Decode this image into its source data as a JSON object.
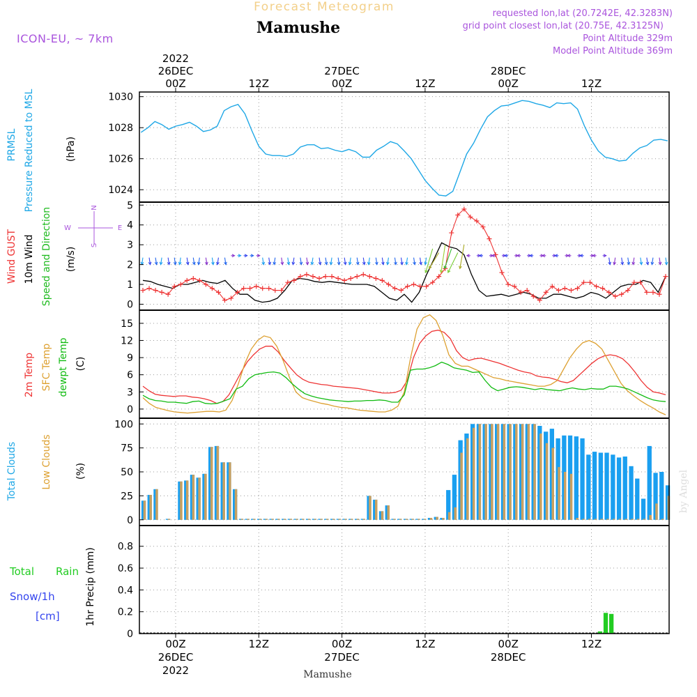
{
  "header": {
    "forecast_label": "Forecast Meteogram",
    "location": "Mamushe",
    "model": "ICON-EU, ~ 7km",
    "requested": "requested lon,lat (20.7242E, 42.3283N)",
    "grid_point": "grid point closest lon,lat (20.75E, 42.3125N)",
    "point_alt": "Point Altitude 329m",
    "model_alt": "Model Point Altitude 369m",
    "watermark": "by Angel",
    "footer_location": "Mamushe"
  },
  "colors": {
    "pressure": "#1ea7e6",
    "gust": "#ee3333",
    "wind": "#000000",
    "dir_green": "#20bb20",
    "t2m": "#ee3333",
    "sfc": "#dda030",
    "dewpt": "#11bb11",
    "total_cloud": "#1a9ff0",
    "low_cloud": "#c8a060",
    "rain": "#22cc22",
    "snow": "#3344ee",
    "purple": "#aa55dd",
    "gray_label": "#555555"
  },
  "time_axis": {
    "top_labels": [
      {
        "x": 0,
        "lines": [
          "2022",
          "26DEC",
          "00Z"
        ]
      },
      {
        "x": 12,
        "lines": [
          "12Z"
        ]
      },
      {
        "x": 24,
        "lines": [
          "27DEC",
          "00Z"
        ]
      },
      {
        "x": 36,
        "lines": [
          "12Z"
        ]
      },
      {
        "x": 48,
        "lines": [
          "28DEC",
          "00Z"
        ]
      },
      {
        "x": 60,
        "lines": [
          "12Z"
        ]
      }
    ],
    "bottom_labels": [
      {
        "x": 0,
        "lines": [
          "00Z",
          "26DEC",
          "2022"
        ]
      },
      {
        "x": 12,
        "lines": [
          "12Z"
        ]
      },
      {
        "x": 24,
        "lines": [
          "00Z",
          "27DEC"
        ]
      },
      {
        "x": 36,
        "lines": [
          "12Z"
        ]
      },
      {
        "x": 48,
        "lines": [
          "00Z",
          "28DEC"
        ]
      },
      {
        "x": 60,
        "lines": [
          "12Z"
        ]
      }
    ]
  },
  "panels": {
    "pressure": {
      "labels": [
        "PRMSL",
        "Pressure Reduced to MSL"
      ],
      "unit": "(hPa)"
    },
    "wind": {
      "labels": [
        "Wind GUST",
        "10m Wind",
        "Speed and Direction"
      ],
      "unit": "(m/s)",
      "compass": [
        "N",
        "W",
        "E",
        "S"
      ]
    },
    "temp": {
      "labels": [
        "2m Temp",
        "SFC Temp",
        "dewpt Temp"
      ],
      "unit": "(C)"
    },
    "cloud": {
      "labels": [
        "Total Clouds",
        "Low Clouds"
      ],
      "unit": "(%)"
    },
    "precip": {
      "labels": [
        "Total",
        "Rain",
        "Snow/1h",
        "[cm]"
      ],
      "axis_label": "1hr Precip (mm)"
    }
  },
  "chart_data": [
    {
      "type": "line",
      "name": "pressure",
      "ylim": [
        1023.2,
        1030.3
      ],
      "yticks": [
        1024,
        1026,
        1028,
        1030
      ],
      "x": [
        -5,
        -4,
        -3,
        -2,
        -1,
        0,
        1,
        2,
        3,
        4,
        5,
        6,
        7,
        8,
        9,
        10,
        11,
        12,
        13,
        14,
        15,
        16,
        17,
        18,
        19,
        20,
        21,
        22,
        23,
        24,
        25,
        26,
        27,
        28,
        29,
        30,
        31,
        32,
        33,
        34,
        35,
        36,
        37,
        38,
        39,
        40,
        41,
        42,
        43,
        44,
        45,
        46,
        47,
        48,
        49,
        50,
        51,
        52,
        53,
        54,
        55,
        56,
        57,
        58,
        59,
        60,
        61,
        62,
        63,
        64,
        65,
        66,
        67,
        68,
        69,
        70,
        71
      ],
      "series": [
        {
          "values": [
            1027.7,
            1028.0,
            1028.4,
            1028.2,
            1027.9,
            1028.1,
            1028.2,
            1028.35,
            1028.1,
            1027.75,
            1027.85,
            1028.1,
            1029.1,
            1029.35,
            1029.5,
            1028.9,
            1027.8,
            1026.8,
            1026.3,
            1026.2,
            1026.2,
            1026.15,
            1026.3,
            1026.75,
            1026.9,
            1026.9,
            1026.65,
            1026.7,
            1026.55,
            1026.45,
            1026.6,
            1026.45,
            1026.1,
            1026.1,
            1026.55,
            1026.8,
            1027.1,
            1026.95,
            1026.5,
            1026.0,
            1025.3,
            1024.6,
            1024.1,
            1023.65,
            1023.6,
            1023.9,
            1025.1,
            1026.3,
            1027.0,
            1027.9,
            1028.7,
            1029.1,
            1029.4,
            1029.45,
            1029.6,
            1029.75,
            1029.7,
            1029.55,
            1029.45,
            1029.3,
            1029.6,
            1029.55,
            1029.6,
            1029.2,
            1028.1,
            1027.2,
            1026.5,
            1026.1,
            1026.0,
            1025.85,
            1025.9,
            1026.35,
            1026.7,
            1026.85,
            1027.2,
            1027.25,
            1027.15
          ]
        }
      ]
    },
    {
      "type": "line",
      "name": "wind",
      "ylim": [
        -0.3,
        5.15
      ],
      "yticks": [
        0,
        1,
        2,
        3,
        4,
        5
      ],
      "series": [
        {
          "name": "Wind GUST",
          "values": [
            0.7,
            0.8,
            0.7,
            0.6,
            0.5,
            0.9,
            1.0,
            1.2,
            1.3,
            1.2,
            1.0,
            0.8,
            0.6,
            0.2,
            0.3,
            0.6,
            0.8,
            0.8,
            0.9,
            0.8,
            0.8,
            0.7,
            0.7,
            1.1,
            1.2,
            1.4,
            1.5,
            1.4,
            1.3,
            1.4,
            1.4,
            1.3,
            1.2,
            1.3,
            1.4,
            1.5,
            1.4,
            1.3,
            1.2,
            1.0,
            0.8,
            0.7,
            0.9,
            1.0,
            0.9,
            0.9,
            1.1,
            1.4,
            1.8,
            3.6,
            4.5,
            4.8,
            4.4,
            4.2,
            3.9,
            3.3,
            2.5,
            1.6,
            1.0,
            0.9,
            0.6,
            0.7,
            0.4,
            0.2,
            0.6,
            0.9,
            0.7,
            0.8,
            0.7,
            0.8,
            1.1,
            1.1,
            0.9,
            0.8,
            0.6,
            0.4,
            0.5,
            0.7,
            1.1,
            1.1,
            0.6,
            0.6,
            0.5,
            1.4
          ]
        },
        {
          "name": "10m Wind",
          "values": [
            1.2,
            1.15,
            1.0,
            0.9,
            0.8,
            1.0,
            1.0,
            1.1,
            1.2,
            1.1,
            1.05,
            1.2,
            0.8,
            0.5,
            0.5,
            0.2,
            0.1,
            0.15,
            0.3,
            0.7,
            1.2,
            1.3,
            1.25,
            1.15,
            1.1,
            1.15,
            1.1,
            1.05,
            1.0,
            1.0,
            1.0,
            0.9,
            0.6,
            0.3,
            0.2,
            0.5,
            0.1,
            0.6,
            1.5,
            2.3,
            3.1,
            2.9,
            2.8,
            2.5,
            1.5,
            0.7,
            0.4,
            0.45,
            0.5,
            0.4,
            0.5,
            0.6,
            0.5,
            0.3,
            0.3,
            0.5,
            0.5,
            0.4,
            0.3,
            0.4,
            0.6,
            0.5,
            0.3,
            0.6,
            0.9,
            1.0,
            1.0,
            1.2,
            1.1,
            0.6,
            1.4
          ]
        }
      ]
    },
    {
      "type": "line",
      "name": "temperature",
      "ylim": [
        -1.6,
        17.3
      ],
      "yticks": [
        0,
        3,
        6,
        9,
        12,
        15
      ],
      "series": [
        {
          "name": "2m Temp",
          "values": [
            4.0,
            3.2,
            2.6,
            2.4,
            2.3,
            2.2,
            2.3,
            2.3,
            2.1,
            2.0,
            1.8,
            1.5,
            1.0,
            1.3,
            2.5,
            4.5,
            6.5,
            8.3,
            9.5,
            10.5,
            11.0,
            11.0,
            10.0,
            8.5,
            7.2,
            6.0,
            5.2,
            4.7,
            4.5,
            4.3,
            4.2,
            4.0,
            3.9,
            3.8,
            3.7,
            3.6,
            3.4,
            3.2,
            3.0,
            2.8,
            2.8,
            2.9,
            3.3,
            5.0,
            9.0,
            11.5,
            12.8,
            13.6,
            13.8,
            13.4,
            12.3,
            10.2,
            9.0,
            8.5,
            8.8,
            8.9,
            8.6,
            8.3,
            8.0,
            7.6,
            7.2,
            6.8,
            6.5,
            6.3,
            5.8,
            5.6,
            5.5,
            5.2,
            4.8,
            4.6,
            5.0,
            6.0,
            7.0,
            8.0,
            8.8,
            9.3,
            9.5,
            9.3,
            8.8,
            7.8,
            6.5,
            5.0,
            3.8,
            3.0,
            2.8,
            2.5
          ]
        },
        {
          "name": "SFC Temp",
          "values": [
            2.0,
            1.0,
            0.3,
            0.0,
            -0.3,
            -0.5,
            -0.6,
            -0.7,
            -0.6,
            -0.5,
            -0.4,
            -0.4,
            -0.5,
            -0.2,
            1.5,
            4.5,
            8.0,
            10.5,
            12.0,
            12.8,
            12.5,
            11.0,
            8.5,
            5.5,
            3.0,
            2.0,
            1.6,
            1.3,
            1.0,
            0.8,
            0.5,
            0.3,
            0.2,
            0.0,
            -0.2,
            -0.3,
            -0.4,
            -0.5,
            -0.5,
            -0.2,
            0.5,
            3.0,
            9.0,
            14.0,
            16.0,
            16.5,
            15.5,
            13.0,
            9.5,
            8.0,
            7.5,
            7.5,
            7.0,
            6.5,
            6.0,
            5.5,
            5.3,
            5.0,
            4.8,
            4.6,
            4.4,
            4.2,
            4.0,
            4.0,
            4.3,
            5.0,
            7.0,
            9.0,
            10.5,
            11.6,
            12.0,
            11.5,
            10.5,
            8.5,
            6.5,
            4.5,
            3.2,
            2.3,
            1.5,
            0.8,
            0.2,
            -0.5,
            -1.0
          ]
        },
        {
          "name": "dewpt Temp",
          "values": [
            2.4,
            1.8,
            1.5,
            1.4,
            1.2,
            1.2,
            1.1,
            1.0,
            1.3,
            1.4,
            1.0,
            0.9,
            1.0,
            1.4,
            1.8,
            3.5,
            4.0,
            5.3,
            6.0,
            6.2,
            6.4,
            6.5,
            6.3,
            5.5,
            4.4,
            3.5,
            2.7,
            2.3,
            2.0,
            1.8,
            1.6,
            1.5,
            1.4,
            1.3,
            1.4,
            1.4,
            1.5,
            1.5,
            1.6,
            1.5,
            1.2,
            1.2,
            2.5,
            6.8,
            7.0,
            7.0,
            7.2,
            7.6,
            8.2,
            7.8,
            7.2,
            7.0,
            6.8,
            6.4,
            6.5,
            5.0,
            3.8,
            3.2,
            3.5,
            3.8,
            3.9,
            3.8,
            3.6,
            3.4,
            3.6,
            3.4,
            3.3,
            3.2,
            3.5,
            3.7,
            3.5,
            3.4,
            3.6,
            3.5,
            3.5,
            4.0,
            4.0,
            3.8,
            3.5,
            3.0,
            2.5,
            2.0,
            1.6,
            1.4,
            1.3
          ]
        }
      ]
    },
    {
      "type": "bar",
      "name": "clouds",
      "ylim": [
        -6,
        106
      ],
      "yticks": [
        0,
        25,
        50,
        75,
        100
      ],
      "series": [
        {
          "name": "Total Clouds",
          "values": [
            20,
            26,
            32,
            0,
            1,
            0,
            40,
            41,
            47,
            44,
            48,
            76,
            77,
            60,
            60,
            32,
            1,
            1,
            1,
            1,
            1,
            1,
            1,
            1,
            1,
            1,
            1,
            1,
            1,
            1,
            1,
            1,
            1,
            1,
            1,
            1,
            1,
            25,
            21,
            9,
            15,
            1,
            1,
            1,
            1,
            1,
            1,
            2,
            3,
            2,
            31,
            47,
            83,
            90,
            100,
            100,
            100,
            100,
            100,
            100,
            100,
            100,
            100,
            100,
            100,
            98,
            92,
            95,
            85,
            88,
            88,
            87,
            85,
            68,
            71,
            70,
            70,
            68,
            65,
            66,
            56,
            43,
            22,
            77,
            49,
            50,
            36
          ]
        },
        {
          "name": "Low Clouds",
          "values": [
            20,
            26,
            32,
            0,
            1,
            0,
            40,
            41,
            47,
            44,
            48,
            76,
            77,
            60,
            60,
            32,
            1,
            1,
            1,
            1,
            1,
            1,
            1,
            1,
            1,
            1,
            1,
            1,
            1,
            1,
            1,
            1,
            1,
            1,
            1,
            1,
            1,
            25,
            21,
            9,
            15,
            1,
            1,
            1,
            1,
            1,
            1,
            2,
            3,
            2,
            8,
            13,
            70,
            85,
            96,
            100,
            100,
            100,
            100,
            100,
            100,
            100,
            100,
            100,
            100,
            90,
            80,
            75,
            55,
            50,
            48,
            2,
            1,
            1,
            1,
            1,
            1,
            1,
            1,
            1,
            1,
            1,
            1,
            5,
            17,
            1,
            25
          ]
        }
      ]
    },
    {
      "type": "bar",
      "name": "precip",
      "ylim": [
        0,
        0.99
      ],
      "yticks": [
        0,
        0.2,
        0.4,
        0.6,
        0.8
      ],
      "series": [
        {
          "name": "Total Rain",
          "values": [
            0,
            0,
            0,
            0,
            0,
            0,
            0,
            0,
            0,
            0,
            0,
            0,
            0,
            0,
            0,
            0,
            0,
            0,
            0,
            0,
            0,
            0,
            0,
            0,
            0,
            0,
            0,
            0,
            0,
            0,
            0,
            0,
            0,
            0,
            0,
            0,
            0,
            0,
            0,
            0,
            0,
            0,
            0,
            0,
            0,
            0,
            0,
            0,
            0,
            0,
            0,
            0,
            0,
            0,
            0,
            0,
            0,
            0,
            0,
            0,
            0,
            0,
            0,
            0,
            0,
            0,
            0,
            0,
            0,
            0,
            0,
            0,
            0,
            0,
            0,
            0,
            0,
            0,
            0,
            0,
            0,
            0.02,
            0.19,
            0.18,
            0,
            0,
            0,
            0,
            0,
            0,
            0,
            0,
            0,
            0
          ]
        }
      ]
    }
  ]
}
